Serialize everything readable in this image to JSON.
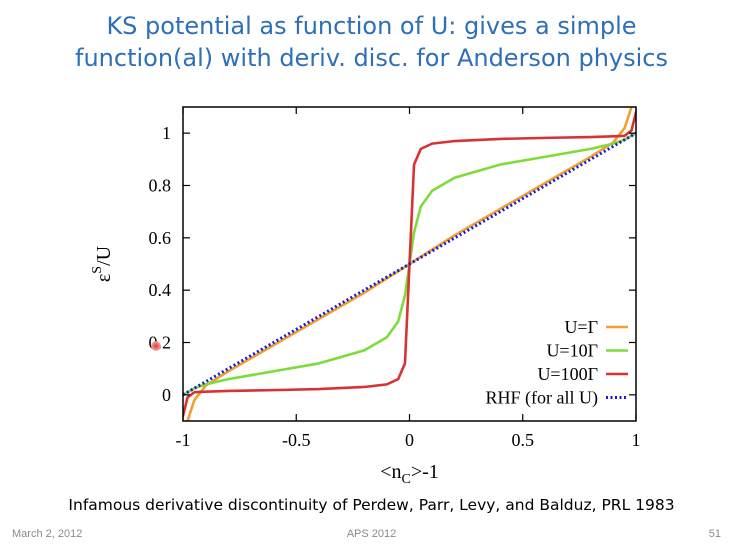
{
  "slide": {
    "title_line1": "KS potential as function of U: gives a simple",
    "title_line2": "function(al) with deriv. disc. for Anderson physics",
    "caption": "Infamous derivative discontinuity of Perdew, Parr, Levy, and Balduz, PRL 1983",
    "footer_date": "March 2, 2012",
    "footer_center": "APS 2012",
    "footer_page": "51"
  },
  "chart_data": {
    "type": "line",
    "title": "",
    "xlabel": "<n_C>-1",
    "ylabel": "ε^S/U",
    "xlim": [
      -1,
      1
    ],
    "ylim": [
      -0.1,
      1.1
    ],
    "x_ticks": [
      -1,
      -0.5,
      0,
      0.5,
      1
    ],
    "x_tick_labels": [
      "-1",
      "-0.5",
      "0",
      "0.5",
      "1"
    ],
    "y_ticks": [
      0,
      0.2,
      0.4,
      0.6,
      0.8,
      1
    ],
    "y_tick_labels": [
      "0",
      "0.2",
      "0.4",
      "0.6",
      "0.8",
      "1"
    ],
    "legend_position": "bottom-right",
    "x": [
      -1.0,
      -0.98,
      -0.95,
      -0.9,
      -0.8,
      -0.6,
      -0.4,
      -0.2,
      -0.1,
      -0.05,
      -0.02,
      0.0,
      0.02,
      0.05,
      0.1,
      0.2,
      0.4,
      0.6,
      0.8,
      0.9,
      0.95,
      0.98,
      1.0
    ],
    "series": [
      {
        "name": "U=Γ",
        "color": "#f0a030",
        "dash": "solid",
        "values": [
          -0.15,
          -0.1,
          -0.02,
          0.035,
          0.09,
          0.19,
          0.29,
          0.39,
          0.445,
          0.472,
          0.489,
          0.5,
          0.511,
          0.528,
          0.555,
          0.61,
          0.71,
          0.81,
          0.91,
          0.965,
          1.02,
          1.1,
          1.15
        ]
      },
      {
        "name": "U=10Γ",
        "color": "#7ddc3a",
        "dash": "solid",
        "values": [
          0.0,
          0.01,
          0.025,
          0.04,
          0.06,
          0.09,
          0.12,
          0.17,
          0.22,
          0.28,
          0.38,
          0.5,
          0.62,
          0.72,
          0.78,
          0.83,
          0.88,
          0.91,
          0.94,
          0.96,
          0.975,
          0.99,
          1.0
        ]
      },
      {
        "name": "U=100Γ",
        "color": "#d93232",
        "dash": "solid",
        "values": [
          -0.08,
          -0.01,
          0.01,
          0.012,
          0.015,
          0.018,
          0.022,
          0.03,
          0.04,
          0.06,
          0.12,
          0.5,
          0.88,
          0.94,
          0.96,
          0.97,
          0.978,
          0.982,
          0.985,
          0.988,
          0.99,
          1.01,
          1.08
        ]
      },
      {
        "name": "RHF (for all U)",
        "color": "#1a1ad8",
        "dash": "dotted",
        "values": [
          0.0,
          0.01,
          0.025,
          0.05,
          0.1,
          0.2,
          0.3,
          0.4,
          0.45,
          0.475,
          0.49,
          0.5,
          0.51,
          0.525,
          0.55,
          0.6,
          0.7,
          0.8,
          0.9,
          0.95,
          0.975,
          0.99,
          1.0
        ]
      }
    ]
  }
}
